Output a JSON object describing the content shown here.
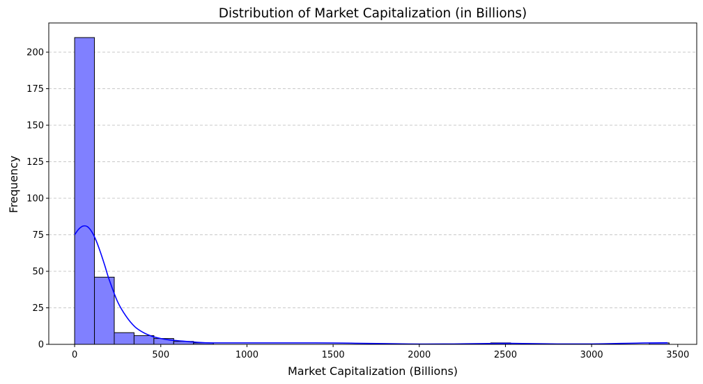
{
  "chart_data": {
    "type": "bar",
    "title": "Distribution of Market Capitalization (in Billions)",
    "xlabel": "Market Capitalization (Billions)",
    "ylabel": "Frequency",
    "xlim": [
      -150,
      3610
    ],
    "ylim": [
      0,
      220
    ],
    "xticks": [
      0,
      500,
      1000,
      1500,
      2000,
      2500,
      3000,
      3500
    ],
    "yticks": [
      0,
      25,
      50,
      75,
      100,
      125,
      150,
      175,
      200
    ],
    "grid": "y dashed",
    "bin_width": 115,
    "bins": [
      {
        "start": 0,
        "count": 210
      },
      {
        "start": 115,
        "count": 46
      },
      {
        "start": 230,
        "count": 8
      },
      {
        "start": 345,
        "count": 6
      },
      {
        "start": 460,
        "count": 4
      },
      {
        "start": 575,
        "count": 2
      },
      {
        "start": 690,
        "count": 1
      },
      {
        "start": 805,
        "count": 0
      },
      {
        "start": 920,
        "count": 0
      },
      {
        "start": 1035,
        "count": 0
      },
      {
        "start": 1150,
        "count": 0
      },
      {
        "start": 1265,
        "count": 0
      },
      {
        "start": 1380,
        "count": 0
      },
      {
        "start": 1495,
        "count": 0
      },
      {
        "start": 1610,
        "count": 0
      },
      {
        "start": 1725,
        "count": 0
      },
      {
        "start": 1840,
        "count": 0
      },
      {
        "start": 1955,
        "count": 0
      },
      {
        "start": 2070,
        "count": 0
      },
      {
        "start": 2185,
        "count": 0
      },
      {
        "start": 2300,
        "count": 0
      },
      {
        "start": 2415,
        "count": 1
      },
      {
        "start": 2530,
        "count": 0
      },
      {
        "start": 2645,
        "count": 0
      },
      {
        "start": 2760,
        "count": 0
      },
      {
        "start": 2875,
        "count": 0
      },
      {
        "start": 2990,
        "count": 0
      },
      {
        "start": 3105,
        "count": 0
      },
      {
        "start": 3220,
        "count": 0
      },
      {
        "start": 3335,
        "count": 1
      }
    ],
    "kde": {
      "x": [
        0,
        25,
        50,
        75,
        100,
        125,
        150,
        175,
        200,
        250,
        300,
        350,
        400,
        450,
        500,
        550,
        600,
        700,
        800,
        1000,
        1200,
        1500,
        1800,
        2000,
        2200,
        2400,
        2500,
        2600,
        2800,
        3000,
        3200,
        3300,
        3440
      ],
      "y": [
        75,
        79,
        81,
        80.5,
        77,
        71,
        63,
        54,
        44.5,
        29,
        19,
        12,
        8,
        5.5,
        4,
        3,
        2.5,
        1.5,
        1,
        1,
        1,
        0.9,
        0.5,
        0.2,
        0.3,
        0.6,
        0.7,
        0.6,
        0.3,
        0.3,
        0.7,
        0.9,
        1.1
      ]
    },
    "colors": {
      "bar_fill": "#8080ff",
      "bar_edge": "#000000",
      "kde_line": "#0000ff",
      "grid": "#c8c8c8"
    }
  }
}
